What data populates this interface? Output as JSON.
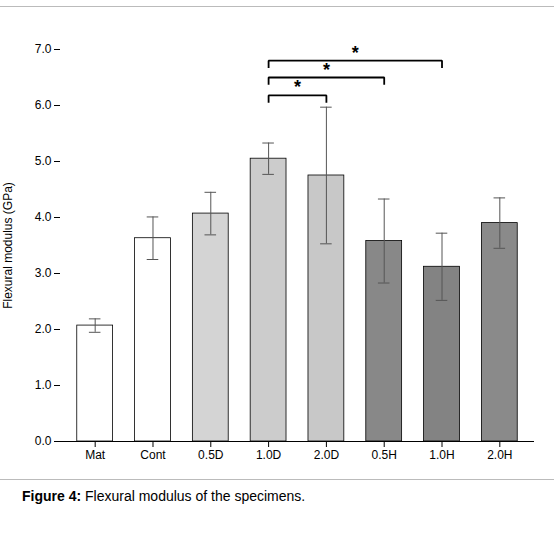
{
  "chart_data": {
    "type": "bar",
    "categories": [
      "Mat",
      "Cont",
      "0.5D",
      "1.0D",
      "2.0D",
      "0.5H",
      "1.0H",
      "2.0H"
    ],
    "values": [
      2.07,
      3.63,
      4.07,
      5.05,
      4.75,
      3.58,
      3.12,
      3.9
    ],
    "errors": [
      0.12,
      0.38,
      0.38,
      0.28,
      1.22,
      0.75,
      0.6,
      0.45
    ],
    "colors": [
      "#ffffff",
      "#ffffff",
      "#d4d4d4",
      "#cccccc",
      "#c8c8c8",
      "#888888",
      "#838383",
      "#8a8a8a"
    ],
    "ylabel": "Flexural modulus (GPa)",
    "ylim": [
      0,
      7
    ],
    "yticks": [
      0,
      1,
      2,
      3,
      4,
      5,
      6,
      7
    ],
    "grid": false,
    "annotations": [
      {
        "x1": "1.0D",
        "x2": "2.0D",
        "y": 6.18,
        "drop": 0.13,
        "label": "*"
      },
      {
        "x1": "1.0D",
        "x2": "0.5H",
        "y": 6.5,
        "drop": 0.13,
        "label": "*"
      },
      {
        "x1": "1.0D",
        "x2": "1.0H",
        "y": 6.8,
        "drop": 0.13,
        "label": "*"
      }
    ],
    "caption_label": "Figure 4:",
    "caption": "Flexural modulus of the specimens."
  }
}
